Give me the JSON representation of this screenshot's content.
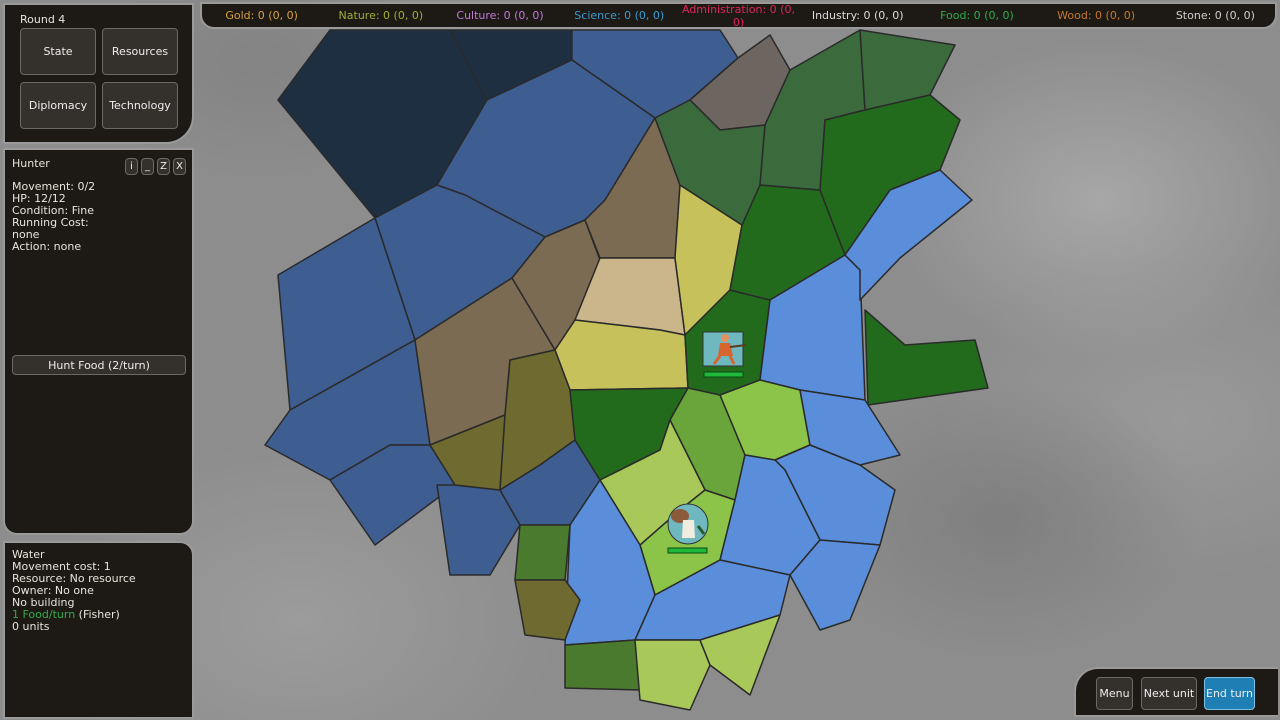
{
  "resources": [
    {
      "label": "Gold: 0 (0, 0)",
      "color": "#d9a13a"
    },
    {
      "label": "Nature: 0 (0, 0)",
      "color": "#9bb034"
    },
    {
      "label": "Culture: 0 (0, 0)",
      "color": "#c07ad8"
    },
    {
      "label": "Science: 0 (0, 0)",
      "color": "#3b9bd0"
    },
    {
      "label": "Administration: 0 (0, 0)",
      "color": "#e0245a"
    },
    {
      "label": "Industry: 0 (0, 0)",
      "color": "#dcdcdc"
    },
    {
      "label": "Food: 0 (0, 0)",
      "color": "#2fae4a"
    },
    {
      "label": "Wood: 0 (0, 0)",
      "color": "#c57a2a"
    },
    {
      "label": "Stone: 0 (0, 0)",
      "color": "#cfcfcf"
    }
  ],
  "menu": {
    "round": "Round 4",
    "state": "State",
    "resources": "Resources",
    "diplomacy": "Diplomacy",
    "technology": "Technology"
  },
  "unit": {
    "name": "Hunter",
    "buttons": {
      "info": "i",
      "minimize": "_",
      "sleep": "Z",
      "close": "X"
    },
    "lines": [
      "Movement: 0/2",
      "HP: 12/12",
      "Condition: Fine",
      "Running Cost:",
      "none",
      "Action: none"
    ],
    "action": "Hunt Food (2/turn)",
    "hp_fraction": 1.0
  },
  "tile": {
    "lines": [
      "Water",
      "Movement cost: 1",
      "Resource: No resource",
      "Owner: No one",
      "No building"
    ],
    "yield": "1 Food/turn",
    "yield_source": " (Fisher)",
    "yield_color": "#2fae4a",
    "units": "0 units"
  },
  "controls": {
    "menu": "Menu",
    "next_unit": "Next unit",
    "end_turn": "End turn",
    "accent": "#1f7fb5"
  }
}
